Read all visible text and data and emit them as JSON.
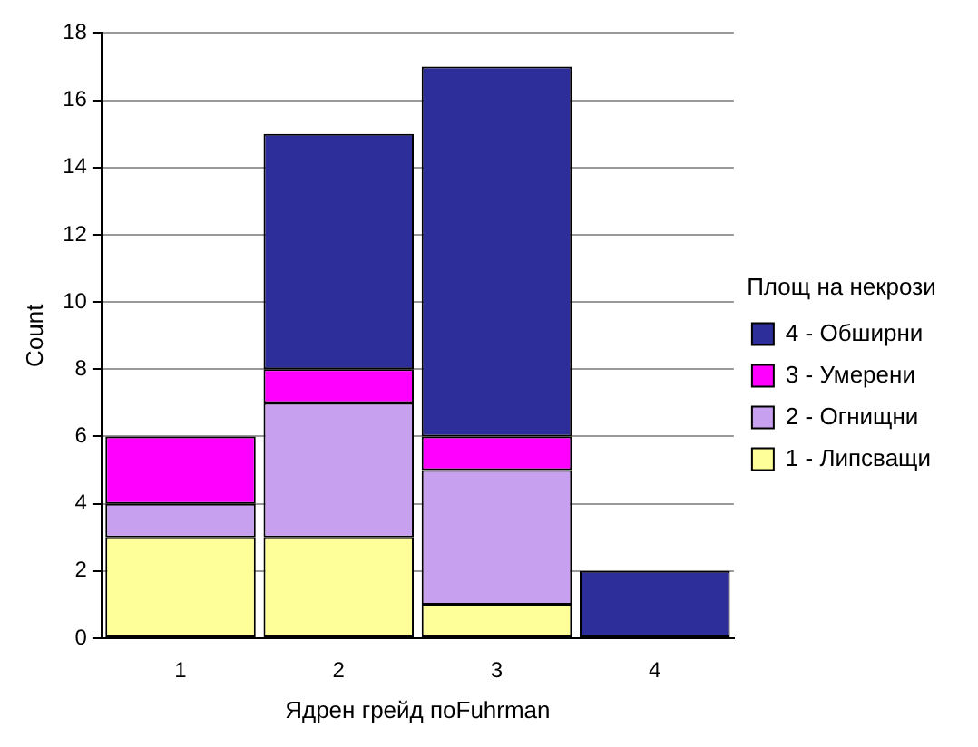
{
  "chart_data": {
    "type": "bar",
    "stacked": true,
    "xlabel": "Ядрен грейд поFuhrman",
    "ylabel": "Count",
    "legend_title": "Площ на некрози",
    "categories": [
      "1",
      "2",
      "3",
      "4"
    ],
    "series": [
      {
        "name": "1 - Липсващи",
        "color": "#ffff99",
        "values": [
          3,
          3,
          1,
          0
        ]
      },
      {
        "name": "2 - Огнищни",
        "color": "#c8a0f0",
        "values": [
          1,
          4,
          4,
          0
        ]
      },
      {
        "name": "3 - Умерени",
        "color": "#ff00ff",
        "values": [
          2,
          1,
          1,
          0
        ]
      },
      {
        "name": "4 - Обширни",
        "color": "#2e2e9a",
        "values": [
          0,
          7,
          11,
          2
        ]
      }
    ],
    "ylim": [
      0,
      18
    ],
    "yticks": [
      0,
      2,
      4,
      6,
      8,
      10,
      12,
      14,
      16,
      18
    ],
    "grid": "y",
    "legend": "right"
  }
}
